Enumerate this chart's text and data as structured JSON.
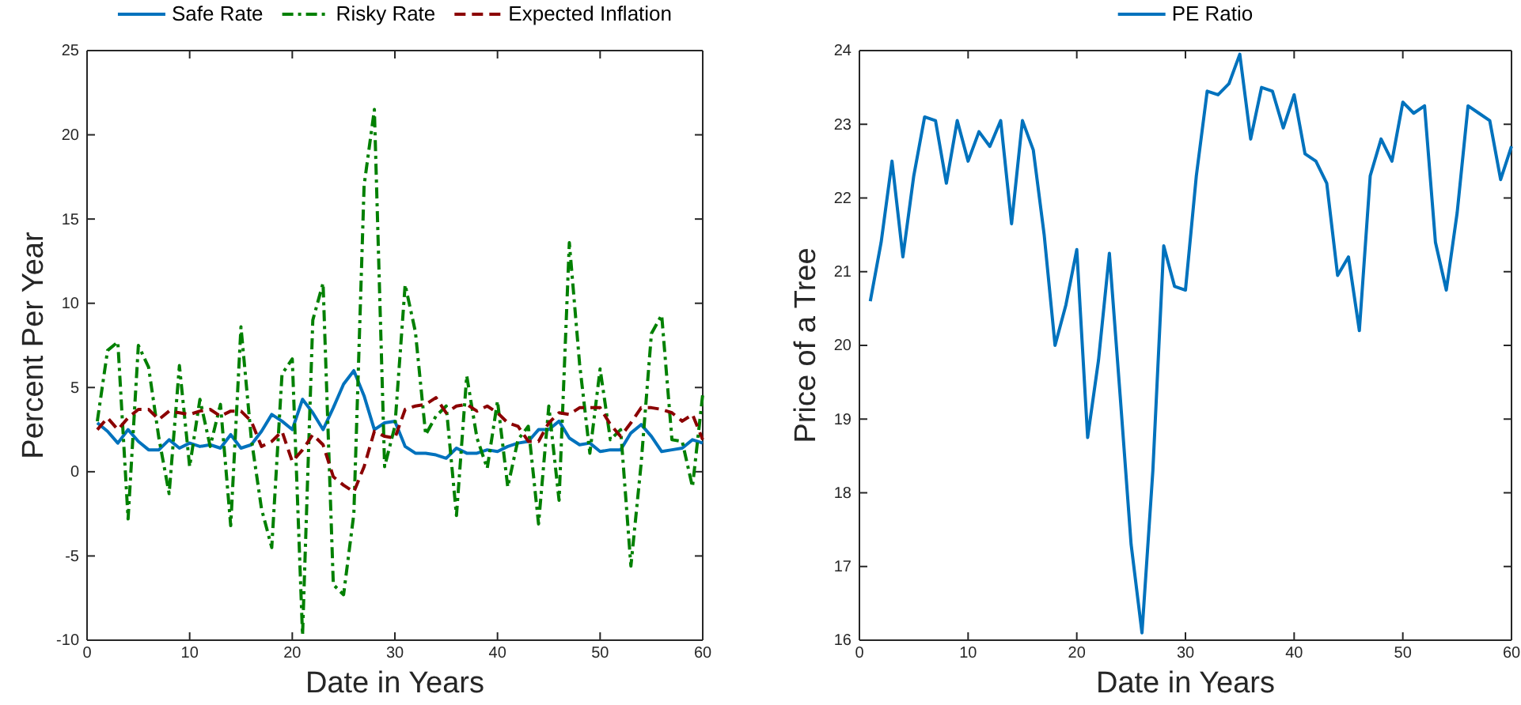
{
  "chart_data": [
    {
      "type": "line",
      "xlabel": "Date in Years",
      "ylabel": "Percent Per Year",
      "xlim": [
        0,
        60
      ],
      "xticks": [
        0,
        10,
        20,
        30,
        40,
        50,
        60
      ],
      "ylim": [
        -10,
        25
      ],
      "yticks": [
        -10,
        -5,
        0,
        5,
        10,
        15,
        20,
        25
      ],
      "legend": "top",
      "grid": false,
      "x": [
        1,
        2,
        3,
        4,
        5,
        6,
        7,
        8,
        9,
        10,
        11,
        12,
        13,
        14,
        15,
        16,
        17,
        18,
        19,
        20,
        21,
        22,
        23,
        24,
        25,
        26,
        27,
        28,
        29,
        30,
        31,
        32,
        33,
        34,
        35,
        36,
        37,
        38,
        39,
        40,
        41,
        42,
        43,
        44,
        45,
        46,
        47,
        48,
        49,
        50,
        51,
        52,
        53,
        54,
        55,
        56,
        57,
        58,
        59,
        60
      ],
      "series": [
        {
          "name": "Safe Rate",
          "color": "#0072bd",
          "line_style": "solid",
          "values": [
            2.9,
            2.4,
            1.7,
            2.5,
            1.8,
            1.3,
            1.3,
            1.9,
            1.4,
            1.7,
            1.5,
            1.6,
            1.4,
            2.2,
            1.4,
            1.6,
            2.4,
            3.4,
            3.0,
            2.5,
            4.3,
            3.5,
            2.5,
            3.8,
            5.2,
            6.0,
            4.5,
            2.5,
            2.9,
            3.0,
            1.5,
            1.1,
            1.1,
            1.0,
            0.8,
            1.4,
            1.1,
            1.1,
            1.3,
            1.2,
            1.5,
            1.7,
            1.8,
            2.5,
            2.5,
            3.0,
            2.0,
            1.6,
            1.7,
            1.2,
            1.3,
            1.3,
            2.3,
            2.8,
            2.1,
            1.2,
            1.3,
            1.4,
            1.9,
            1.7
          ]
        },
        {
          "name": "Risky Rate",
          "color": "#008000",
          "line_style": "dashdot",
          "values": [
            3,
            7.2,
            7.7,
            -2.8,
            7.5,
            6.2,
            2,
            -1.3,
            6.3,
            0.3,
            4.3,
            1.5,
            4,
            -3.2,
            8.6,
            2,
            -2.2,
            -4.5,
            5.8,
            6.7,
            -9.7,
            9,
            11.2,
            -6.7,
            -7.3,
            -2.5,
            17,
            21.5,
            0.3,
            2.7,
            11.1,
            8.3,
            2.2,
            3.3,
            3.9,
            -2.6,
            5.7,
            2,
            0.2,
            4.2,
            -0.9,
            1.9,
            2.7,
            -3.1,
            3.9,
            -1.7,
            13.6,
            6.4,
            1.1,
            6.1,
            1.9,
            2.5,
            -5.6,
            0.5,
            8.2,
            9.3,
            1.9,
            1.8,
            -0.9,
            4.6
          ]
        },
        {
          "name": "Expected Inflation",
          "color": "#8b0000",
          "line_style": "dashed",
          "values": [
            2.5,
            3.2,
            2.5,
            3.2,
            3.7,
            3.7,
            3.1,
            3.6,
            3.5,
            3.4,
            3.6,
            3.7,
            3.3,
            3.6,
            3.6,
            3.0,
            1.5,
            1.8,
            2.4,
            0.6,
            1.3,
            2.2,
            1.6,
            -0.3,
            -0.8,
            -1.2,
            0.3,
            2.4,
            2.1,
            2.0,
            3.7,
            3.9,
            4.0,
            4.4,
            3.5,
            3.9,
            4.0,
            3.6,
            3.9,
            3.5,
            2.9,
            2.7,
            1.8,
            1.8,
            2.9,
            3.5,
            3.4,
            3.8,
            3.8,
            3.8,
            2.8,
            2.1,
            2.9,
            3.8,
            3.8,
            3.7,
            3.5,
            3.0,
            3.4,
            1.9
          ]
        }
      ]
    },
    {
      "type": "line",
      "xlabel": "Date in Years",
      "ylabel": "Price of a Tree",
      "xlim": [
        0,
        60
      ],
      "xticks": [
        0,
        10,
        20,
        30,
        40,
        50,
        60
      ],
      "ylim": [
        16,
        24
      ],
      "yticks": [
        16,
        17,
        18,
        19,
        20,
        21,
        22,
        23,
        24
      ],
      "legend": "top",
      "grid": false,
      "x": [
        1,
        2,
        3,
        4,
        5,
        6,
        7,
        8,
        9,
        10,
        11,
        12,
        13,
        14,
        15,
        16,
        17,
        18,
        19,
        20,
        21,
        22,
        23,
        24,
        25,
        26,
        27,
        28,
        29,
        30,
        31,
        32,
        33,
        34,
        35,
        36,
        37,
        38,
        39,
        40,
        41,
        42,
        43,
        44,
        45,
        46,
        47,
        48,
        49,
        50,
        51,
        52,
        53,
        54,
        55,
        56,
        57,
        58,
        59,
        60
      ],
      "series": [
        {
          "name": "PE Ratio",
          "color": "#0072bd",
          "line_style": "solid",
          "values": [
            20.6,
            21.4,
            22.5,
            21.2,
            22.3,
            23.1,
            23.05,
            22.2,
            23.05,
            22.5,
            22.9,
            22.7,
            23.05,
            21.65,
            23.05,
            22.65,
            21.5,
            20.0,
            20.55,
            21.3,
            18.75,
            19.8,
            21.25,
            19.3,
            17.3,
            16.1,
            18.3,
            21.35,
            20.8,
            20.75,
            22.3,
            23.45,
            23.4,
            23.55,
            23.95,
            22.8,
            23.5,
            23.45,
            22.95,
            23.4,
            22.6,
            22.5,
            22.2,
            20.95,
            21.2,
            20.2,
            22.3,
            22.8,
            22.5,
            23.3,
            23.15,
            23.25,
            21.4,
            20.75,
            21.8,
            23.25,
            23.15,
            23.05,
            22.25,
            22.7
          ]
        }
      ]
    }
  ]
}
